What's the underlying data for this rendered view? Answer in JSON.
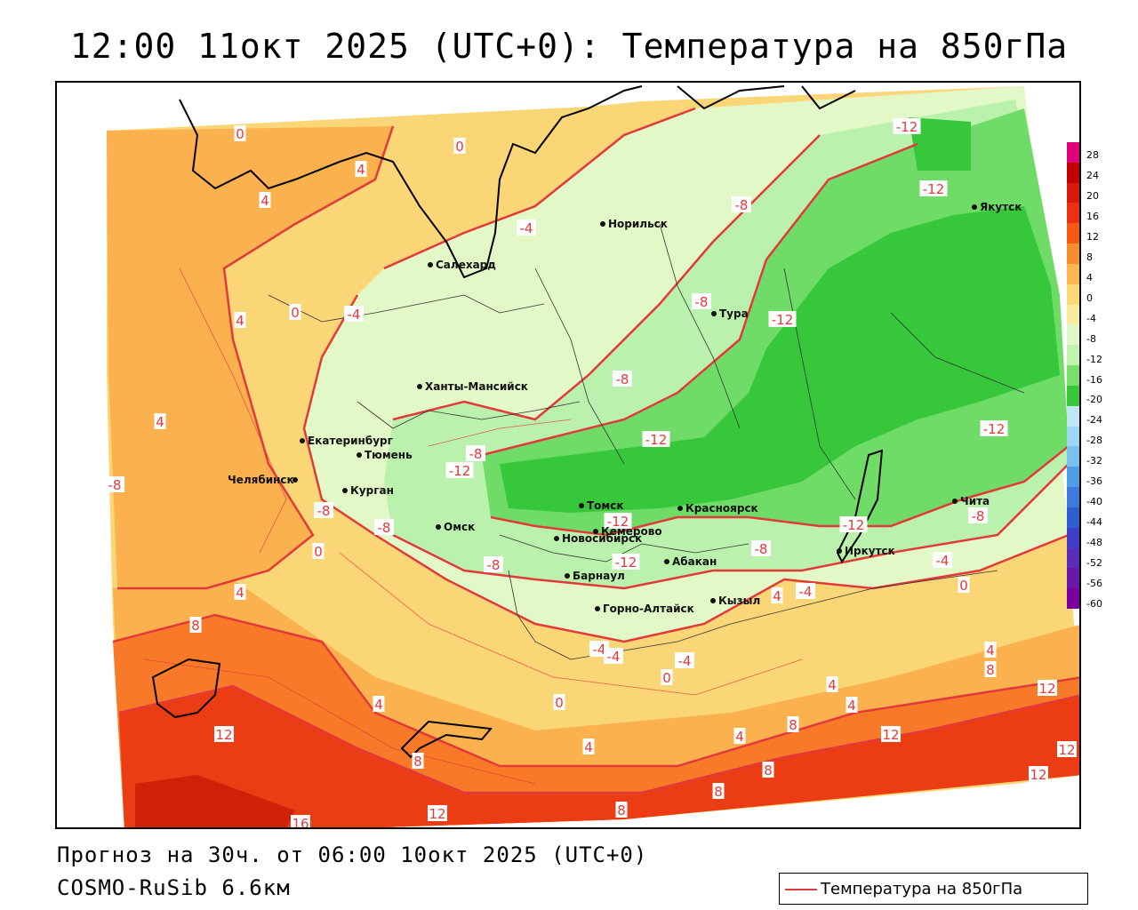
{
  "title": "12:00 11окт 2025 (UTC+0): Температура на 850гПа",
  "footer": {
    "forecast": "Прогноз на 30ч. от 06:00 10окт 2025 (UTC+0)",
    "model": "COSMO-RuSib 6.6км"
  },
  "legend": {
    "label": "Температура на 850гПа",
    "line_color": "#e23a3a"
  },
  "colorbar": {
    "labels": [
      "28",
      "24",
      "20",
      "16",
      "12",
      "8",
      "4",
      "0",
      "-4",
      "-8",
      "-12",
      "-16",
      "-20",
      "-24",
      "-28",
      "-32",
      "-36",
      "-40",
      "-44",
      "-48",
      "-52",
      "-56",
      "-60"
    ],
    "colors": [
      "#e0007a",
      "#c00000",
      "#d81a08",
      "#ec3010",
      "#f55a10",
      "#f88c30",
      "#fcb650",
      "#fcd878",
      "#f8ec9e",
      "#e0f7c8",
      "#c2f2b0",
      "#78e06a",
      "#36c93a",
      "#bfe6f7",
      "#9dd7f5",
      "#79c1f0",
      "#4f9ee8",
      "#3a7bdd",
      "#2f5ed0",
      "#3f3fc8",
      "#5a2cb8",
      "#6a18a8",
      "#7a00a0"
    ]
  },
  "colors": {
    "isoline": "#e23a3a",
    "warm_12": "#ec3c14",
    "warm_8": "#f87a28",
    "warm_4": "#fbb24e",
    "warm_0": "#fbd677",
    "cool_m4": "#e2f8c6",
    "cool_m8": "#baf1ac",
    "cool_m12": "#6edc66",
    "cool_m16": "#36c73a"
  },
  "cities": [
    {
      "name": "Норильск"
    },
    {
      "name": "Салехард"
    },
    {
      "name": "Якутск"
    },
    {
      "name": "Тура"
    },
    {
      "name": "Ханты-Мансийск"
    },
    {
      "name": "Екатеринбург"
    },
    {
      "name": "Тюмень"
    },
    {
      "name": "Челябинск"
    },
    {
      "name": "Курган"
    },
    {
      "name": "Омск"
    },
    {
      "name": "Томск"
    },
    {
      "name": "Новосибирск"
    },
    {
      "name": "Кемерово"
    },
    {
      "name": "Красноярск"
    },
    {
      "name": "Абакан"
    },
    {
      "name": "Барнаул"
    },
    {
      "name": "Горно-Алтайск"
    },
    {
      "name": "Кызыл"
    },
    {
      "name": "Иркутск"
    },
    {
      "name": "Чита"
    }
  ],
  "isolabels": [
    {
      "text": "0"
    },
    {
      "text": "4"
    },
    {
      "text": "4"
    },
    {
      "text": "0"
    },
    {
      "text": "-4"
    },
    {
      "text": "-12"
    },
    {
      "text": "-12"
    },
    {
      "text": "-8"
    },
    {
      "text": "-8"
    },
    {
      "text": "-12"
    },
    {
      "text": "0"
    },
    {
      "text": "-4"
    },
    {
      "text": "4"
    },
    {
      "text": "4"
    },
    {
      "text": "-8"
    },
    {
      "text": "-12"
    },
    {
      "text": "-12"
    },
    {
      "text": "-8"
    },
    {
      "text": "-12"
    },
    {
      "text": "-12"
    },
    {
      "text": "-8"
    },
    {
      "text": "-12"
    },
    {
      "text": "-8"
    },
    {
      "text": "-8"
    },
    {
      "text": "-4"
    },
    {
      "text": "0"
    },
    {
      "text": "-12"
    },
    {
      "text": "-8"
    },
    {
      "text": "-8"
    },
    {
      "text": "-4"
    },
    {
      "text": "-4"
    },
    {
      "text": "4"
    },
    {
      "text": "0"
    },
    {
      "text": "4"
    },
    {
      "text": "8"
    },
    {
      "text": "-4"
    },
    {
      "text": "-4"
    },
    {
      "text": "0"
    },
    {
      "text": "4"
    },
    {
      "text": "4"
    },
    {
      "text": "8"
    },
    {
      "text": "4"
    },
    {
      "text": "12"
    },
    {
      "text": "8"
    },
    {
      "text": "4"
    },
    {
      "text": "0"
    },
    {
      "text": "4"
    },
    {
      "text": "8"
    },
    {
      "text": "12"
    },
    {
      "text": "16"
    },
    {
      "text": "8"
    },
    {
      "text": "12"
    },
    {
      "text": "8"
    },
    {
      "text": "12"
    },
    {
      "text": "12"
    },
    {
      "text": "12"
    },
    {
      "text": "12"
    },
    {
      "text": "8"
    },
    {
      "text": "4"
    },
    {
      "text": "-8"
    }
  ]
}
